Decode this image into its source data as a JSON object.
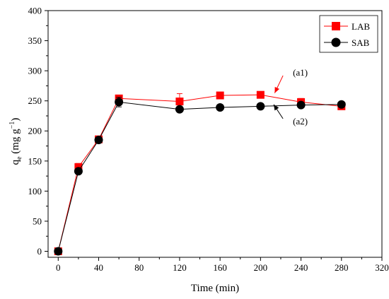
{
  "chart_data": {
    "type": "line",
    "xlabel": "Time (min)",
    "ylabel": "q",
    "ylabel_sub": "e",
    "ylabel_unit_open": " (mg g",
    "ylabel_sup": "−1",
    "ylabel_unit_close": ")",
    "xlim": [
      -10,
      320
    ],
    "ylim": [
      -10,
      400
    ],
    "xticks": [
      0,
      40,
      80,
      120,
      160,
      200,
      240,
      280,
      320
    ],
    "yticks": [
      0,
      50,
      100,
      150,
      200,
      250,
      300,
      350,
      400
    ],
    "grid": false,
    "legend_position": "top-right",
    "series": [
      {
        "name": "LAB",
        "color": "#ff0000",
        "marker": "square",
        "x": [
          0,
          20,
          40,
          60,
          120,
          160,
          200,
          240,
          280
        ],
        "y": [
          0,
          140,
          186,
          254,
          249,
          259,
          260,
          248,
          241
        ],
        "err": [
          3,
          6,
          4,
          4,
          13,
          4,
          3,
          6,
          5
        ]
      },
      {
        "name": "SAB",
        "color": "#000000",
        "marker": "circle",
        "x": [
          0,
          20,
          40,
          60,
          120,
          160,
          200,
          240,
          280
        ],
        "y": [
          0,
          133,
          185,
          248,
          236,
          239,
          241,
          243,
          244
        ],
        "err": [
          3,
          3,
          3,
          8,
          3,
          2,
          2,
          3,
          4
        ]
      }
    ],
    "annotations": [
      {
        "text": "(a1)",
        "color": "#ff0000",
        "at_x": 214,
        "at_y": 263,
        "label_x": 232,
        "label_y": 292
      },
      {
        "text": "(a2)",
        "color": "#000000",
        "at_x": 213,
        "at_y": 244,
        "label_x": 232,
        "label_y": 211
      }
    ]
  }
}
